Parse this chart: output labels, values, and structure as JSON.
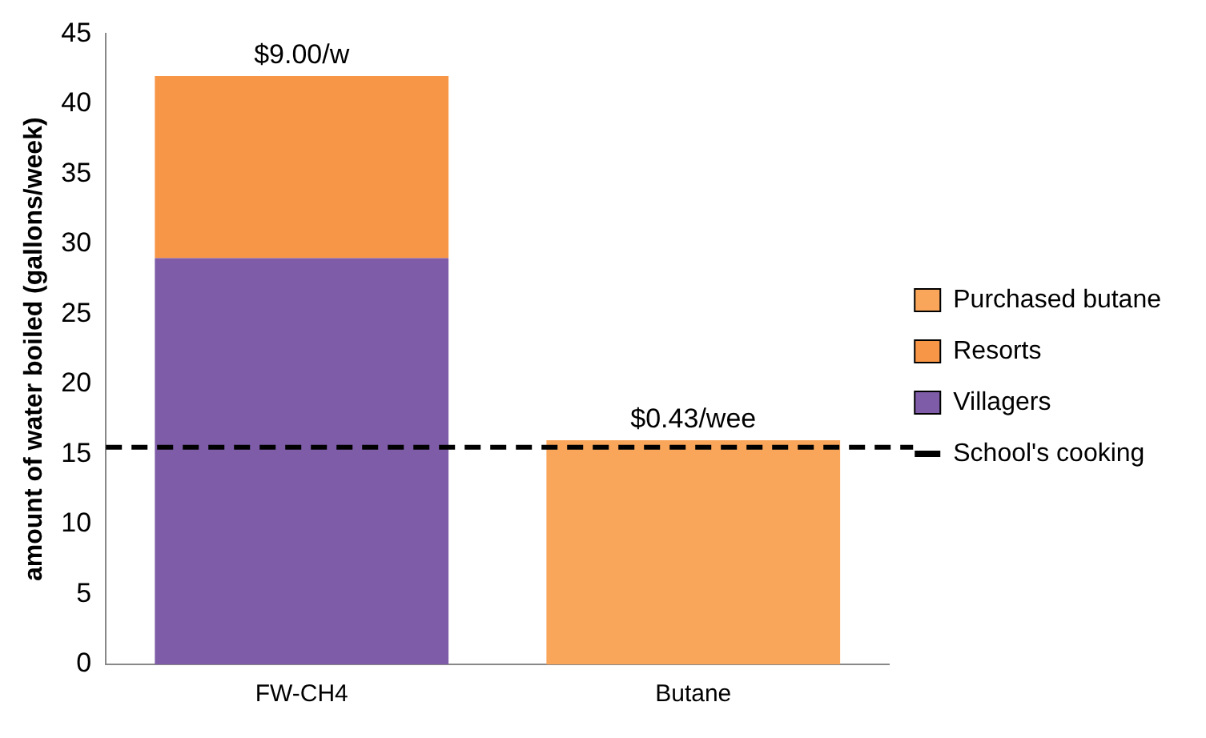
{
  "chart_data": {
    "type": "bar",
    "stacked": true,
    "categories": [
      "FW-CH4",
      "Butane"
    ],
    "ylabel": "amount of water boiled (gallons/week)",
    "series": [
      {
        "name": "Villagers",
        "color": "#7e5ca8",
        "values": [
          29,
          null
        ]
      },
      {
        "name": "Resorts",
        "color": "#f79646",
        "values": [
          13,
          null
        ]
      },
      {
        "name": "Purchased butane",
        "color": "#f9a65a",
        "values": [
          null,
          16
        ]
      }
    ],
    "ylim": [
      0,
      45
    ],
    "yticks": [
      0,
      5,
      10,
      15,
      20,
      25,
      30,
      35,
      40,
      45
    ],
    "ref_lines": [
      {
        "axis": "y",
        "value": 15.5,
        "label": "School's cooking",
        "color": "#000000",
        "line_style": "dashed"
      }
    ],
    "annotations": [
      {
        "text": "$9.00/w",
        "x": "FW-CH4",
        "y": 42
      },
      {
        "text": "$0.43/wee",
        "x": "Butane",
        "y": 16
      }
    ],
    "grid": false,
    "legend": "right"
  }
}
